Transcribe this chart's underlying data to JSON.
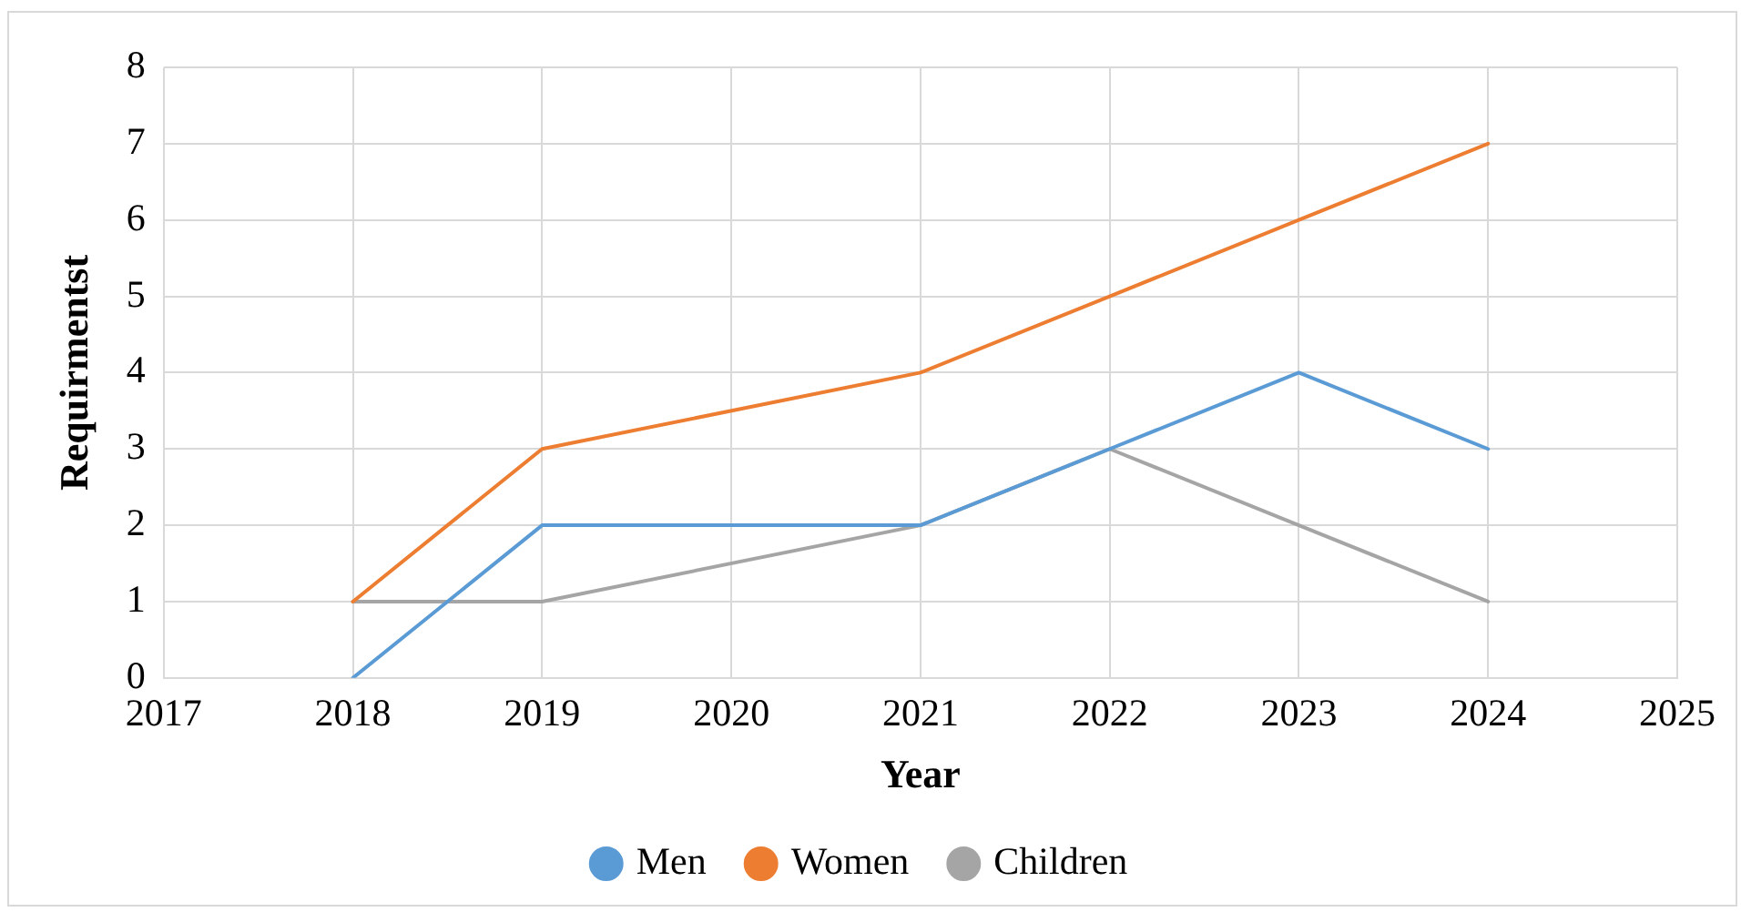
{
  "chart_data": {
    "type": "line",
    "xlabel": "Year",
    "ylabel": "Requirmentst",
    "x": [
      2018,
      2019,
      2021,
      2022,
      2023,
      2024
    ],
    "series": [
      {
        "name": "Men",
        "color": "#5b9bd5",
        "values": [
          0,
          2,
          2,
          3,
          4,
          3
        ]
      },
      {
        "name": "Women",
        "color": "#ed7d31",
        "values": [
          1,
          3,
          4,
          5,
          6,
          7
        ]
      },
      {
        "name": "Children",
        "color": "#a5a5a5",
        "values": [
          1,
          1,
          2,
          3,
          2,
          1
        ]
      }
    ],
    "xlim": [
      2017,
      2025
    ],
    "xticks": [
      2017,
      2018,
      2019,
      2020,
      2021,
      2022,
      2023,
      2024,
      2025
    ],
    "ylim": [
      0,
      8
    ],
    "yticks": [
      0,
      1,
      2,
      3,
      4,
      5,
      6,
      7,
      8
    ],
    "grid": true,
    "legend": "bottom",
    "marker": "none",
    "line_style": "solid"
  }
}
